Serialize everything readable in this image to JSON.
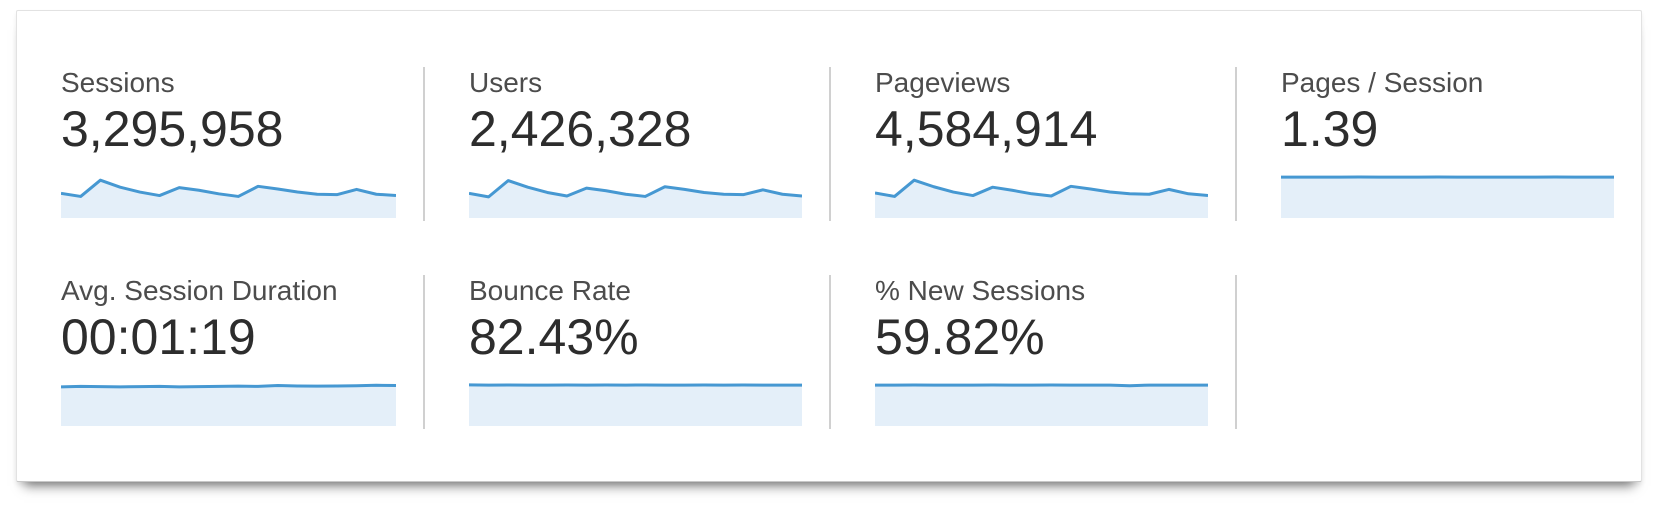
{
  "colors": {
    "sparkline_line": "#4698d2",
    "sparkline_fill": "#e4eff9",
    "divider": "#d0d0d0",
    "label_text": "#4c4c4c",
    "value_text": "#2d2d2d",
    "panel_bg": "#ffffff"
  },
  "metrics": [
    {
      "label": "Sessions",
      "value": "3,295,958"
    },
    {
      "label": "Users",
      "value": "2,426,328"
    },
    {
      "label": "Pageviews",
      "value": "4,584,914"
    },
    {
      "label": "Pages / Session",
      "value": "1.39"
    },
    {
      "label": "Avg. Session Duration",
      "value": "00:01:19"
    },
    {
      "label": "Bounce Rate",
      "value": "82.43%"
    },
    {
      "label": "% New Sessions",
      "value": "59.82%"
    }
  ],
  "chart_data": {
    "type": "area",
    "title": "",
    "xlabel": "",
    "ylabel": "",
    "ylim": [
      0,
      10
    ],
    "grid": false,
    "legend": false,
    "series": [
      {
        "name": "Sessions",
        "values": [
          5.6,
          4.9,
          8.6,
          7.0,
          5.9,
          5.1,
          6.9,
          6.3,
          5.5,
          4.9,
          7.2,
          6.6,
          5.9,
          5.4,
          5.3,
          6.5,
          5.4,
          5.1
        ]
      },
      {
        "name": "Users",
        "values": [
          5.6,
          4.8,
          8.5,
          7.0,
          5.8,
          5.0,
          6.8,
          6.2,
          5.4,
          4.9,
          7.1,
          6.5,
          5.8,
          5.4,
          5.3,
          6.4,
          5.4,
          5.0
        ]
      },
      {
        "name": "Pageviews",
        "values": [
          5.7,
          4.9,
          8.6,
          7.1,
          5.9,
          5.1,
          7.0,
          6.3,
          5.5,
          5.0,
          7.2,
          6.6,
          5.9,
          5.5,
          5.4,
          6.5,
          5.5,
          5.1
        ]
      },
      {
        "name": "Pages / Session",
        "values": [
          9.3,
          9.3,
          9.28,
          9.3,
          9.32,
          9.3,
          9.29,
          9.3,
          9.31,
          9.3,
          9.3,
          9.28,
          9.3,
          9.3,
          9.31,
          9.3,
          9.3,
          9.3
        ]
      },
      {
        "name": "Avg. Session Duration",
        "values": [
          8.9,
          9.0,
          8.95,
          8.9,
          8.95,
          9.0,
          8.9,
          8.95,
          9.0,
          9.05,
          9.0,
          9.2,
          9.1,
          9.05,
          9.1,
          9.15,
          9.25,
          9.2
        ]
      },
      {
        "name": "Bounce Rate",
        "values": [
          9.35,
          9.3,
          9.32,
          9.3,
          9.3,
          9.33,
          9.3,
          9.31,
          9.3,
          9.32,
          9.3,
          9.3,
          9.31,
          9.3,
          9.32,
          9.3,
          9.3,
          9.3
        ]
      },
      {
        "name": "% New Sessions",
        "values": [
          9.3,
          9.3,
          9.32,
          9.3,
          9.28,
          9.3,
          9.31,
          9.3,
          9.3,
          9.32,
          9.3,
          9.3,
          9.28,
          9.15,
          9.3,
          9.3,
          9.3,
          9.3
        ]
      }
    ]
  }
}
